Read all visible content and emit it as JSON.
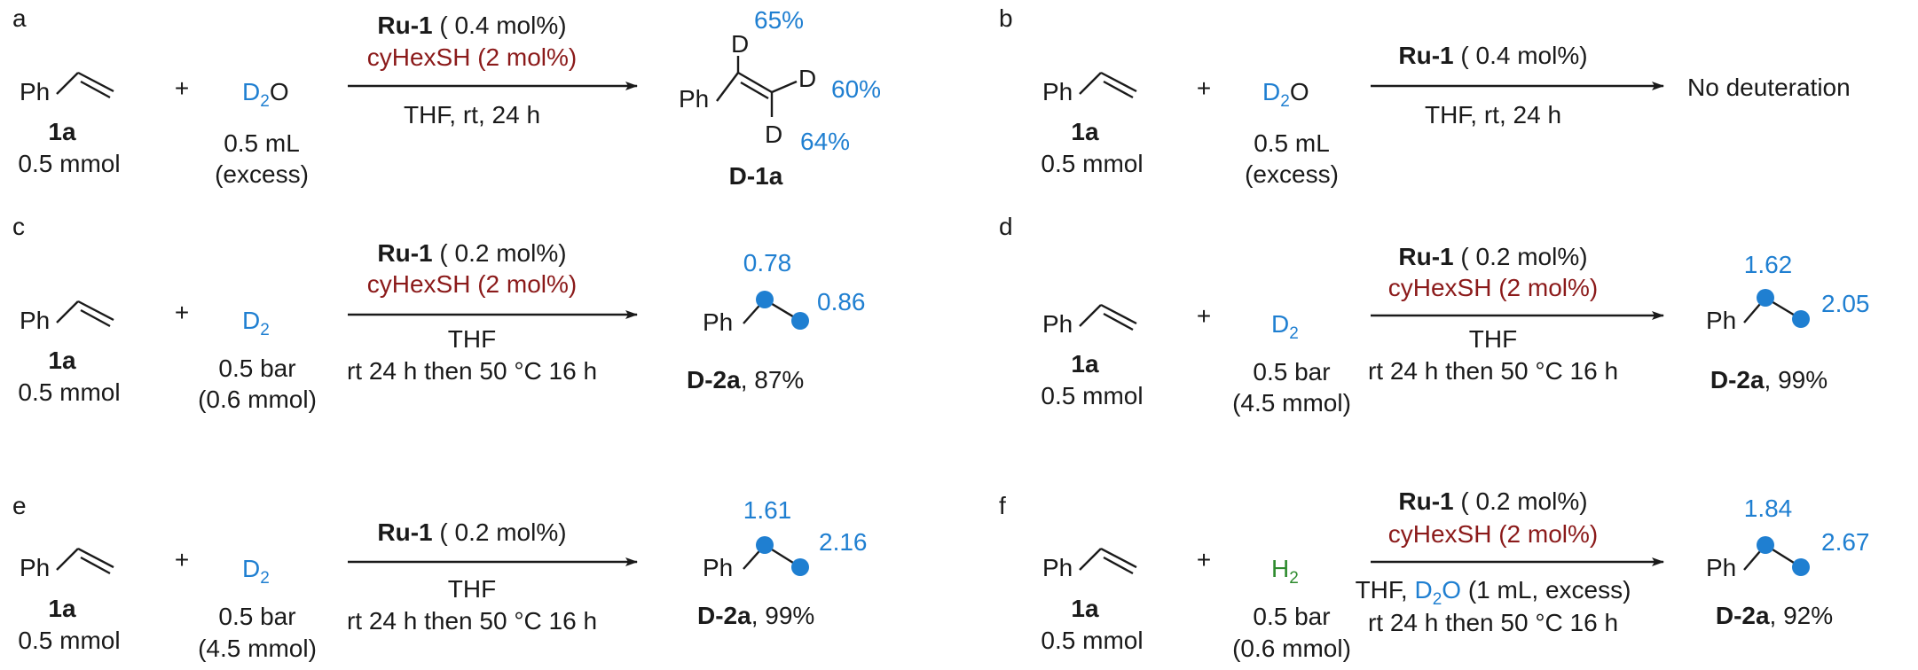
{
  "panels": {
    "a": {
      "letter": "a",
      "ph": "Ph",
      "sm_label": "1a",
      "sm_amount": "0.5 mmol",
      "plus": "+",
      "reagent_main": "D",
      "reagent_sub": "2",
      "reagent_tail": "O",
      "reagent_amount": "0.5 mL",
      "reagent_note": "(excess)",
      "cat_bold": "Ru-1",
      "cat_rest": " ( 0.4 mol%)",
      "cocat": "cyHexSH (2 mol%)",
      "cond1": "THF, rt, 24 h",
      "prod_ph": "Ph",
      "d_top": "D",
      "d_right": "D",
      "d_bottom": "D",
      "pct_top": "65%",
      "pct_right": "60%",
      "pct_bottom": "64%",
      "prod_label": "D-1a"
    },
    "b": {
      "letter": "b",
      "ph": "Ph",
      "sm_label": "1a",
      "sm_amount": "0.5 mmol",
      "plus": "+",
      "reagent_main": "D",
      "reagent_sub": "2",
      "reagent_tail": "O",
      "reagent_amount": "0.5 mL",
      "reagent_note": "(excess)",
      "cat_bold": "Ru-1",
      "cat_rest": " ( 0.4 mol%)",
      "cond1": "THF, rt, 24 h",
      "result": "No deuteration"
    },
    "c": {
      "letter": "c",
      "ph": "Ph",
      "sm_label": "1a",
      "sm_amount": "0.5 mmol",
      "plus": "+",
      "reagent_main": "D",
      "reagent_sub": "2",
      "reagent_amount": "0.5 bar",
      "reagent_note": "(0.6 mmol)",
      "cat_bold": "Ru-1",
      "cat_rest": " ( 0.2 mol%)",
      "cocat": "cyHexSH (2 mol%)",
      "cond1": "THF",
      "cond2": "rt 24 h then 50 °C 16 h",
      "prod_ph": "Ph",
      "val1": "0.78",
      "val2": "0.86",
      "prod_label": "D-2a",
      "prod_yield": ", 87%"
    },
    "d": {
      "letter": "d",
      "ph": "Ph",
      "sm_label": "1a",
      "sm_amount": "0.5 mmol",
      "plus": "+",
      "reagent_main": "D",
      "reagent_sub": "2",
      "reagent_amount": "0.5 bar",
      "reagent_note": "(4.5 mmol)",
      "cat_bold": "Ru-1",
      "cat_rest": " ( 0.2 mol%)",
      "cocat": "cyHexSH (2 mol%)",
      "cond1": "THF",
      "cond2": "rt 24 h then 50 °C 16 h",
      "prod_ph": "Ph",
      "val1": "1.62",
      "val2": "2.05",
      "prod_label": "D-2a",
      "prod_yield": ", 99%"
    },
    "e": {
      "letter": "e",
      "ph": "Ph",
      "sm_label": "1a",
      "sm_amount": "0.5 mmol",
      "plus": "+",
      "reagent_main": "D",
      "reagent_sub": "2",
      "reagent_amount": "0.5 bar",
      "reagent_note": "(4.5 mmol)",
      "cat_bold": "Ru-1",
      "cat_rest": " ( 0.2 mol%)",
      "cond1": "THF",
      "cond2": "rt 24 h then 50 °C 16 h",
      "prod_ph": "Ph",
      "val1": "1.61",
      "val2": "2.16",
      "prod_label": "D-2a",
      "prod_yield": ", 99%"
    },
    "f": {
      "letter": "f",
      "ph": "Ph",
      "sm_label": "1a",
      "sm_amount": "0.5 mmol",
      "plus": "+",
      "reagent_main": "H",
      "reagent_sub": "2",
      "reagent_amount": "0.5 bar",
      "reagent_note": "(0.6 mmol)",
      "cat_bold": "Ru-1",
      "cat_rest": " ( 0.2 mol%)",
      "cocat": "cyHexSH (2 mol%)",
      "cond1_a": "THF, ",
      "cond1_d": "D",
      "cond1_sub": "2",
      "cond1_o": "O",
      "cond1_b": " (1 mL, excess)",
      "cond2": "rt 24 h then 50 °C 16 h",
      "prod_ph": "Ph",
      "val1": "1.84",
      "val2": "2.67",
      "prod_label": "D-2a",
      "prod_yield": ", 92%"
    }
  }
}
